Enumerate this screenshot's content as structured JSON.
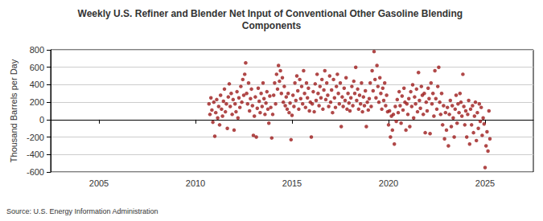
{
  "chart_data": {
    "type": "scatter",
    "title": "Weekly U.S. Refiner and Blender Net Input of Conventional Other Gasoline Blending Components",
    "y_label": "Thousand Barrels per Day",
    "source": "Source: U.S. Energy Information Administration",
    "color": "#9c1a1a",
    "marker": "circle",
    "grid": true,
    "xlim": [
      2002.5,
      2027.5
    ],
    "xticks": [
      2005,
      2010,
      2015,
      2020,
      2025
    ],
    "ylim": [
      -600,
      800
    ],
    "yticks": [
      -600,
      -400,
      -200,
      0,
      200,
      400,
      600,
      800
    ],
    "x": [
      2010.7,
      2010.75,
      2010.8,
      2010.85,
      2010.9,
      2010.95,
      2011.0,
      2011.05,
      2011.1,
      2011.15,
      2011.2,
      2011.25,
      2011.3,
      2011.35,
      2011.4,
      2011.45,
      2011.5,
      2011.55,
      2011.6,
      2011.65,
      2011.7,
      2011.75,
      2011.8,
      2011.85,
      2011.9,
      2011.95,
      2012.0,
      2012.05,
      2012.1,
      2012.15,
      2012.2,
      2012.25,
      2012.3,
      2012.35,
      2012.4,
      2012.45,
      2012.5,
      2012.55,
      2012.6,
      2012.65,
      2012.7,
      2012.75,
      2012.8,
      2012.85,
      2012.9,
      2012.95,
      2013.0,
      2013.05,
      2013.1,
      2013.15,
      2013.2,
      2013.25,
      2013.3,
      2013.35,
      2013.4,
      2013.45,
      2013.5,
      2013.55,
      2013.6,
      2013.65,
      2013.7,
      2013.75,
      2013.8,
      2013.85,
      2013.9,
      2013.95,
      2014.0,
      2014.05,
      2014.1,
      2014.15,
      2014.2,
      2014.25,
      2014.3,
      2014.35,
      2014.4,
      2014.45,
      2014.5,
      2014.55,
      2014.6,
      2014.65,
      2014.7,
      2014.75,
      2014.8,
      2014.85,
      2014.9,
      2014.95,
      2015.0,
      2015.05,
      2015.1,
      2015.15,
      2015.2,
      2015.25,
      2015.3,
      2015.35,
      2015.4,
      2015.45,
      2015.5,
      2015.55,
      2015.6,
      2015.65,
      2015.7,
      2015.75,
      2015.8,
      2015.85,
      2015.9,
      2015.95,
      2016.0,
      2016.05,
      2016.1,
      2016.15,
      2016.2,
      2016.25,
      2016.3,
      2016.35,
      2016.4,
      2016.45,
      2016.5,
      2016.55,
      2016.6,
      2016.65,
      2016.7,
      2016.75,
      2016.8,
      2016.85,
      2016.9,
      2016.95,
      2017.0,
      2017.05,
      2017.1,
      2017.15,
      2017.2,
      2017.25,
      2017.3,
      2017.35,
      2017.4,
      2017.45,
      2017.5,
      2017.55,
      2017.6,
      2017.65,
      2017.7,
      2017.75,
      2017.8,
      2017.85,
      2017.9,
      2017.95,
      2018.0,
      2018.05,
      2018.1,
      2018.15,
      2018.2,
      2018.25,
      2018.3,
      2018.35,
      2018.4,
      2018.45,
      2018.5,
      2018.55,
      2018.6,
      2018.65,
      2018.7,
      2018.75,
      2018.8,
      2018.85,
      2018.9,
      2018.95,
      2019.0,
      2019.05,
      2019.1,
      2019.15,
      2019.2,
      2019.25,
      2019.3,
      2019.35,
      2019.4,
      2019.45,
      2019.5,
      2019.55,
      2019.6,
      2019.65,
      2019.7,
      2019.75,
      2019.8,
      2019.85,
      2019.9,
      2019.95,
      2020.0,
      2020.05,
      2020.1,
      2020.15,
      2020.2,
      2020.25,
      2020.3,
      2020.35,
      2020.4,
      2020.45,
      2020.5,
      2020.55,
      2020.6,
      2020.65,
      2020.7,
      2020.75,
      2020.8,
      2020.85,
      2020.9,
      2020.95,
      2021.0,
      2021.05,
      2021.1,
      2021.15,
      2021.2,
      2021.25,
      2021.3,
      2021.35,
      2021.4,
      2021.45,
      2021.5,
      2021.55,
      2021.6,
      2021.65,
      2021.7,
      2021.75,
      2021.8,
      2021.85,
      2021.9,
      2021.95,
      2022.0,
      2022.05,
      2022.1,
      2022.15,
      2022.2,
      2022.25,
      2022.3,
      2022.35,
      2022.4,
      2022.45,
      2022.5,
      2022.55,
      2022.6,
      2022.65,
      2022.7,
      2022.75,
      2022.8,
      2022.85,
      2022.9,
      2022.95,
      2023.0,
      2023.05,
      2023.1,
      2023.15,
      2023.2,
      2023.25,
      2023.3,
      2023.35,
      2023.4,
      2023.45,
      2023.5,
      2023.55,
      2023.6,
      2023.65,
      2023.7,
      2023.75,
      2023.8,
      2023.85,
      2023.9,
      2023.95,
      2024.0,
      2024.05,
      2024.1,
      2024.15,
      2024.2,
      2024.25,
      2024.3,
      2024.35,
      2024.4,
      2024.45,
      2024.5,
      2024.55,
      2024.6,
      2024.65,
      2024.7,
      2024.75,
      2024.8,
      2024.85,
      2024.9,
      2024.95,
      2025.0,
      2025.05,
      2025.1,
      2025.15,
      2025.2,
      2025.25
    ],
    "values": [
      180,
      60,
      250,
      110,
      -30,
      200,
      -190,
      80,
      230,
      20,
      150,
      -60,
      280,
      120,
      40,
      210,
      350,
      90,
      180,
      -100,
      260,
      410,
      150,
      300,
      60,
      230,
      -120,
      180,
      90,
      320,
      20,
      250,
      140,
      380,
      200,
      460,
      280,
      520,
      650,
      300,
      180,
      420,
      100,
      240,
      350,
      160,
      -180,
      40,
      260,
      -200,
      130,
      360,
      210,
      80,
      300,
      150,
      420,
      240,
      60,
      190,
      320,
      120,
      -40,
      270,
      140,
      -210,
      60,
      280,
      420,
      180,
      520,
      350,
      620,
      440,
      560,
      300,
      480,
      200,
      380,
      160,
      260,
      120,
      300,
      80,
      190,
      -230,
      50,
      280,
      150,
      420,
      220,
      500,
      330,
      120,
      460,
      240,
      380,
      180,
      560,
      300,
      140,
      420,
      250,
      360,
      100,
      200,
      -200,
      180,
      320,
      90,
      410,
      220,
      520,
      300,
      160,
      380,
      250,
      460,
      120,
      340,
      560,
      230,
      420,
      280,
      150,
      500,
      200,
      340,
      80,
      460,
      250,
      140,
      380,
      520,
      300,
      180,
      420,
      -80,
      260,
      150,
      360,
      220,
      480,
      120,
      300,
      190,
      100,
      250,
      380,
      160,
      440,
      300,
      600,
      220,
      350,
      120,
      280,
      180,
      420,
      90,
      260,
      160,
      330,
      -80,
      200,
      110,
      240,
      420,
      150,
      560,
      330,
      780,
      460,
      250,
      620,
      380,
      200,
      480,
      300,
      120,
      360,
      220,
      420,
      160,
      280,
      90,
      -60,
      100,
      -200,
      40,
      -120,
      60,
      -280,
      150,
      -20,
      230,
      80,
      320,
      160,
      -40,
      270,
      110,
      360,
      200,
      -120,
      180,
      60,
      240,
      -80,
      320,
      150,
      400,
      20,
      260,
      180,
      350,
      90,
      540,
      220,
      130,
      380,
      280,
      60,
      300,
      -150,
      200,
      100,
      360,
      240,
      -160,
      420,
      180,
      300,
      40,
      560,
      240,
      120,
      380,
      600,
      200,
      60,
      300,
      -60,
      160,
      -220,
      80,
      -120,
      140,
      -300,
      60,
      220,
      -80,
      160,
      20,
      -200,
      120,
      280,
      -40,
      180,
      80,
      300,
      200,
      40,
      520,
      150,
      -60,
      100,
      -200,
      60,
      220,
      -280,
      120,
      -60,
      160,
      -150,
      40,
      200,
      -240,
      80,
      -100,
      180,
      -20,
      140,
      -180,
      20,
      -50,
      -550,
      -300,
      -140,
      -360,
      100,
      -220
    ]
  }
}
